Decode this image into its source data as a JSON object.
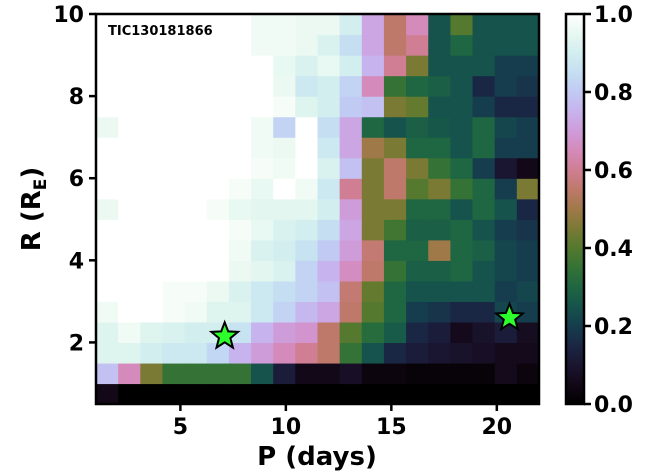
{
  "chart_data": {
    "type": "heatmap",
    "annotation": "TIC130181866",
    "xlabel": "P (days)",
    "ylabel_main": "R (R",
    "ylabel_sub": "E",
    "ylabel_close": ")",
    "xlim": [
      1,
      22
    ],
    "ylim": [
      0.5,
      10
    ],
    "xticks": [
      5,
      10,
      15,
      20
    ],
    "yticks": [
      2,
      4,
      6,
      8,
      10
    ],
    "colorbar": {
      "colormap": "cubehelix",
      "range": [
        0,
        1
      ],
      "ticks": [
        "0.0",
        "0.2",
        "0.4",
        "0.6",
        "0.8",
        "1.0"
      ]
    },
    "x_bins": [
      1,
      2.05,
      3.1,
      4.15,
      5.2,
      6.25,
      7.3,
      8.35,
      9.4,
      10.45,
      11.5,
      12.55,
      13.6,
      14.65,
      15.7,
      16.75,
      17.8,
      18.85,
      19.9,
      20.95,
      22
    ],
    "y_bins": [
      0.5,
      1.0,
      1.5,
      2.0,
      2.5,
      3.0,
      3.5,
      4.0,
      4.5,
      5.0,
      5.5,
      6.0,
      6.5,
      7.0,
      7.5,
      8.0,
      8.5,
      9.0,
      9.5,
      10.0
    ],
    "z": [
      [
        0.05,
        0.0,
        0.0,
        0.0,
        0.0,
        0.0,
        0.0,
        0.0,
        0.0,
        0.0,
        0.0,
        0.0,
        0.0,
        0.0,
        0.0,
        0.0,
        0.0,
        0.0,
        0.0,
        0.0
      ],
      [
        0.78,
        0.65,
        0.45,
        0.35,
        0.35,
        0.35,
        0.35,
        0.25,
        0.12,
        0.05,
        0.05,
        0.08,
        0.03,
        0.03,
        0.02,
        0.02,
        0.02,
        0.02,
        0.06,
        0.03
      ],
      [
        0.93,
        0.93,
        0.9,
        0.88,
        0.88,
        0.83,
        0.75,
        0.7,
        0.65,
        0.6,
        0.55,
        0.35,
        0.25,
        0.15,
        0.12,
        0.1,
        0.09,
        0.08,
        0.06,
        0.06
      ],
      [
        0.93,
        0.97,
        0.93,
        0.92,
        0.9,
        0.9,
        0.86,
        0.75,
        0.7,
        0.68,
        0.55,
        0.4,
        0.32,
        0.27,
        0.15,
        0.12,
        0.06,
        0.09,
        0.12,
        0.07
      ],
      [
        0.97,
        1.0,
        1.0,
        0.98,
        0.97,
        0.93,
        0.93,
        0.88,
        0.82,
        0.76,
        0.72,
        0.55,
        0.4,
        0.3,
        0.2,
        0.18,
        0.15,
        0.15,
        0.22,
        0.2
      ],
      [
        1.0,
        1.0,
        1.0,
        0.98,
        0.98,
        0.96,
        0.92,
        0.88,
        0.85,
        0.82,
        0.78,
        0.56,
        0.42,
        0.3,
        0.25,
        0.25,
        0.25,
        0.25,
        0.2,
        0.22
      ],
      [
        1.0,
        1.0,
        1.0,
        1.0,
        1.0,
        1.0,
        0.96,
        0.94,
        0.92,
        0.82,
        0.75,
        0.66,
        0.55,
        0.35,
        0.28,
        0.28,
        0.3,
        0.25,
        0.22,
        0.2
      ],
      [
        1.0,
        1.0,
        1.0,
        1.0,
        1.0,
        1.0,
        0.97,
        0.92,
        0.9,
        0.86,
        0.8,
        0.7,
        0.56,
        0.3,
        0.3,
        0.5,
        0.3,
        0.28,
        0.22,
        0.2
      ],
      [
        1.0,
        1.0,
        1.0,
        1.0,
        1.0,
        1.0,
        0.98,
        0.95,
        0.92,
        0.9,
        0.85,
        0.72,
        0.45,
        0.37,
        0.28,
        0.28,
        0.3,
        0.25,
        0.2,
        0.18
      ],
      [
        0.96,
        1.0,
        1.0,
        1.0,
        1.0,
        0.98,
        0.95,
        0.94,
        0.94,
        0.94,
        0.9,
        0.7,
        0.45,
        0.45,
        0.3,
        0.3,
        0.25,
        0.3,
        0.25,
        0.15
      ],
      [
        1.0,
        1.0,
        1.0,
        1.0,
        1.0,
        1.0,
        0.98,
        0.95,
        1.0,
        0.97,
        0.88,
        0.6,
        0.45,
        0.55,
        0.4,
        0.45,
        0.35,
        0.3,
        0.2,
        0.45
      ],
      [
        1.0,
        1.0,
        1.0,
        1.0,
        1.0,
        1.0,
        1.0,
        0.98,
        0.97,
        1.0,
        0.92,
        0.78,
        0.45,
        0.55,
        0.45,
        0.35,
        0.3,
        0.2,
        0.1,
        0.05
      ],
      [
        1.0,
        1.0,
        1.0,
        1.0,
        1.0,
        1.0,
        1.0,
        0.97,
        0.96,
        1.0,
        0.88,
        0.72,
        0.5,
        0.45,
        0.3,
        0.3,
        0.25,
        0.3,
        0.2,
        0.2
      ],
      [
        0.96,
        1.0,
        1.0,
        1.0,
        1.0,
        1.0,
        1.0,
        0.97,
        0.82,
        1.0,
        0.85,
        0.72,
        0.3,
        0.25,
        0.28,
        0.26,
        0.25,
        0.3,
        0.22,
        0.2
      ],
      [
        1.0,
        1.0,
        1.0,
        1.0,
        1.0,
        1.0,
        1.0,
        1.0,
        0.98,
        0.93,
        0.9,
        0.8,
        0.78,
        0.45,
        0.42,
        0.25,
        0.25,
        0.2,
        0.15,
        0.15
      ],
      [
        1.0,
        1.0,
        1.0,
        1.0,
        1.0,
        1.0,
        1.0,
        1.0,
        0.96,
        0.88,
        0.9,
        0.82,
        0.65,
        0.35,
        0.3,
        0.28,
        0.25,
        0.15,
        0.2,
        0.18
      ],
      [
        1.0,
        1.0,
        1.0,
        1.0,
        1.0,
        1.0,
        1.0,
        1.0,
        0.95,
        0.92,
        0.95,
        0.9,
        0.75,
        0.6,
        0.45,
        0.25,
        0.25,
        0.25,
        0.2,
        0.2
      ],
      [
        1.0,
        1.0,
        1.0,
        1.0,
        1.0,
        1.0,
        1.0,
        0.97,
        0.97,
        0.96,
        0.92,
        0.85,
        0.72,
        0.55,
        0.6,
        0.25,
        0.3,
        0.25,
        0.25,
        0.25
      ],
      [
        1.0,
        1.0,
        1.0,
        1.0,
        1.0,
        1.0,
        1.0,
        0.97,
        0.97,
        0.96,
        0.96,
        0.9,
        0.72,
        0.55,
        0.65,
        0.25,
        0.4,
        0.25,
        0.25,
        0.25
      ]
    ],
    "markers": [
      {
        "x": 7.1,
        "y": 2.15,
        "symbol": "star",
        "color": "#2dff2d"
      },
      {
        "x": 20.6,
        "y": 2.6,
        "symbol": "star",
        "color": "#2dff2d"
      }
    ]
  }
}
